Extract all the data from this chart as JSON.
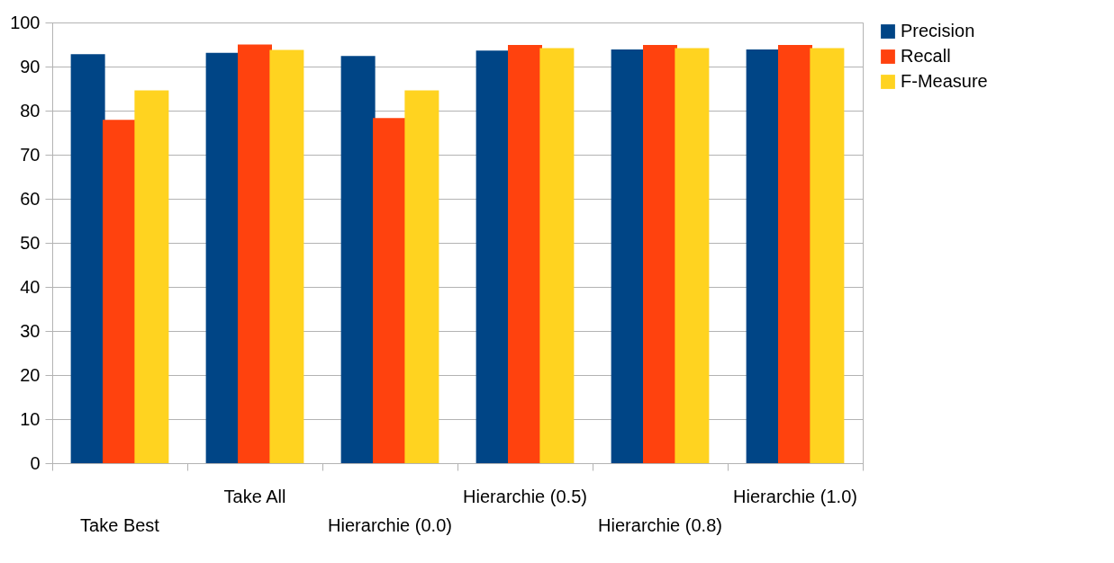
{
  "chart_data": {
    "type": "bar",
    "categories": [
      "Take Best",
      "Take All",
      "Hierarchie (0.0)",
      "Hierarchie (0.5)",
      "Hierarchie (0.8)",
      "Hierarchie (1.0)"
    ],
    "series": [
      {
        "name": "Precision",
        "color": "#004586",
        "values": [
          92.8,
          93.1,
          92.4,
          93.6,
          93.9,
          93.9
        ]
      },
      {
        "name": "Recall",
        "color": "#ff420e",
        "values": [
          77.9,
          95.0,
          78.3,
          94.9,
          94.9,
          94.9
        ]
      },
      {
        "name": "F-Measure",
        "color": "#ffd320",
        "values": [
          84.6,
          93.8,
          84.6,
          94.2,
          94.2,
          94.2
        ]
      }
    ],
    "ylim": [
      0,
      100
    ],
    "yticks": [
      0,
      10,
      20,
      30,
      40,
      50,
      60,
      70,
      80,
      90,
      100
    ],
    "grid": "y",
    "legend": "right"
  }
}
